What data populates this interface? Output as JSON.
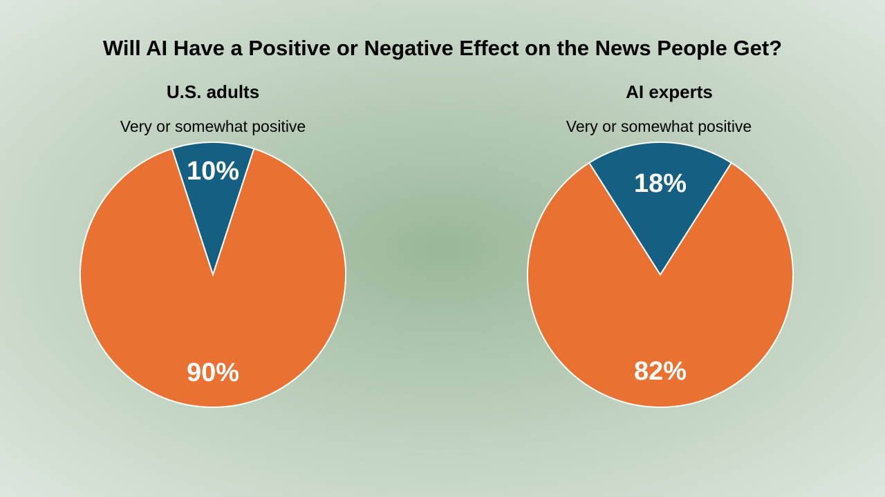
{
  "chart_data": [
    {
      "type": "pie",
      "title": "Will AI Have a Positive or Negative Effect on the News People Get?",
      "subtitle": "U.S. adults",
      "categories": [
        "Very or somewhat positive",
        ""
      ],
      "values": [
        10,
        90
      ],
      "value_labels": [
        "10%",
        "90%"
      ],
      "colors": [
        "#156082",
        "#e97132"
      ]
    },
    {
      "type": "pie",
      "title": "Will AI Have a Positive or Negative Effect on the News People Get?",
      "subtitle": "AI experts",
      "categories": [
        "Very or somewhat positive",
        ""
      ],
      "values": [
        18,
        82
      ],
      "value_labels": [
        "18%",
        "82%"
      ],
      "colors": [
        "#156082",
        "#e97132"
      ]
    }
  ],
  "title": "Will AI Have a Positive or Negative Effect on the News People Get?",
  "charts": [
    {
      "subtitle": "U.S. adults",
      "slice_label": "Very or somewhat positive"
    },
    {
      "subtitle": "AI experts",
      "slice_label": "Very or somewhat positive"
    }
  ]
}
